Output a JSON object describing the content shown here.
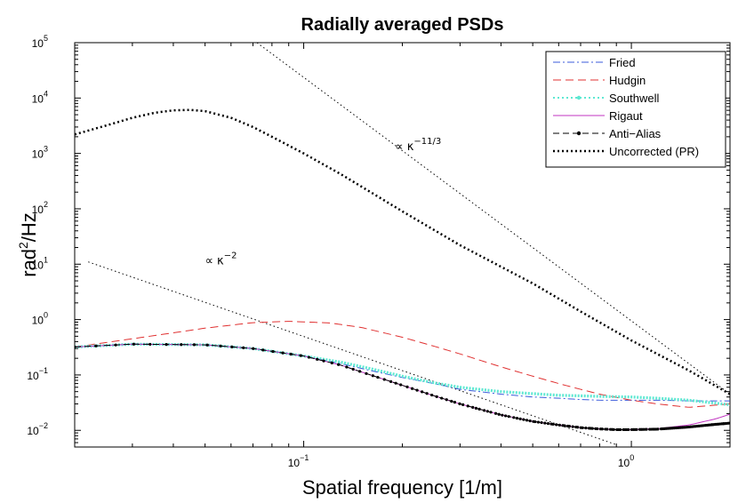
{
  "chart_data": {
    "type": "line",
    "title": "Radially averaged PSDs",
    "xlabel": "Spatial frequency [1/m]",
    "ylabel_base": "rad",
    "ylabel_sup": "2",
    "ylabel_tail": "/Hz",
    "x_scale": "log",
    "y_scale": "log",
    "xlim": [
      0.02,
      2.0
    ],
    "ylim": [
      0.005,
      100000
    ],
    "grid": false,
    "legend_position": "top-right",
    "x_ticks": [
      {
        "value": 0.1,
        "base": "10",
        "exp": "−1"
      },
      {
        "value": 1.0,
        "base": "10",
        "exp": "0"
      }
    ],
    "y_ticks": [
      {
        "value": 0.01,
        "base": "10",
        "exp": "−2"
      },
      {
        "value": 0.1,
        "base": "10",
        "exp": "−1"
      },
      {
        "value": 1,
        "base": "10",
        "exp": "0"
      },
      {
        "value": 10,
        "base": "10",
        "exp": "1"
      },
      {
        "value": 100,
        "base": "10",
        "exp": "2"
      },
      {
        "value": 1000,
        "base": "10",
        "exp": "3"
      },
      {
        "value": 10000,
        "base": "10",
        "exp": "4"
      },
      {
        "value": 100000,
        "base": "10",
        "exp": "5"
      }
    ],
    "annotations": [
      {
        "id": "k113",
        "prefix": "∝ κ",
        "sup": "−11/3",
        "x": 0.19,
        "y": 1150
      },
      {
        "id": "k2",
        "prefix": "∝ κ",
        "sup": "−2",
        "x": 0.05,
        "y": 10
      }
    ],
    "series": [
      {
        "name": "Fried",
        "color": "#3b5bdb",
        "style": "dashdot",
        "x": [
          0.02,
          0.03,
          0.05,
          0.07,
          0.1,
          0.13,
          0.16,
          0.2,
          0.25,
          0.3,
          0.4,
          0.5,
          0.6,
          0.7,
          0.8,
          1.0,
          1.2,
          1.5,
          1.8,
          2.0
        ],
        "y": [
          0.32,
          0.36,
          0.35,
          0.3,
          0.22,
          0.16,
          0.12,
          0.09,
          0.07,
          0.055,
          0.045,
          0.04,
          0.038,
          0.036,
          0.035,
          0.035,
          0.035,
          0.034,
          0.034,
          0.034
        ]
      },
      {
        "name": "Hudgin",
        "color": "#e03131",
        "style": "dashed",
        "x": [
          0.02,
          0.03,
          0.05,
          0.07,
          0.09,
          0.12,
          0.15,
          0.2,
          0.25,
          0.3,
          0.4,
          0.5,
          0.6,
          0.7,
          0.8,
          1.0,
          1.2,
          1.5,
          2.0
        ],
        "y": [
          0.32,
          0.45,
          0.7,
          0.88,
          0.93,
          0.87,
          0.72,
          0.48,
          0.33,
          0.24,
          0.14,
          0.095,
          0.07,
          0.055,
          0.045,
          0.035,
          0.03,
          0.026,
          0.03
        ]
      },
      {
        "name": "Southwell",
        "color": "#5ee8d2",
        "style": "dotted",
        "x": [
          0.02,
          0.03,
          0.05,
          0.07,
          0.1,
          0.13,
          0.16,
          0.2,
          0.25,
          0.3,
          0.4,
          0.5,
          0.6,
          0.7,
          0.8,
          1.0,
          1.2,
          1.5,
          1.8,
          2.0
        ],
        "y": [
          0.32,
          0.36,
          0.35,
          0.3,
          0.22,
          0.17,
          0.13,
          0.095,
          0.072,
          0.06,
          0.05,
          0.046,
          0.043,
          0.042,
          0.041,
          0.04,
          0.038,
          0.035,
          0.031,
          0.029
        ]
      },
      {
        "name": "Rigaut",
        "color": "#c033c0",
        "style": "solid",
        "x": [
          0.02,
          0.03,
          0.05,
          0.07,
          0.1,
          0.13,
          0.16,
          0.2,
          0.25,
          0.3,
          0.4,
          0.5,
          0.6,
          0.7,
          0.8,
          0.9,
          1.0,
          1.2,
          1.5,
          1.8,
          2.0
        ],
        "y": [
          0.32,
          0.36,
          0.35,
          0.3,
          0.22,
          0.15,
          0.1,
          0.065,
          0.042,
          0.03,
          0.019,
          0.0145,
          0.0125,
          0.0112,
          0.0106,
          0.0103,
          0.0103,
          0.0107,
          0.0125,
          0.016,
          0.0195
        ]
      },
      {
        "name": "Anti−Alias",
        "color": "#000000",
        "style": "dashed-dots",
        "x": [
          0.02,
          0.03,
          0.05,
          0.07,
          0.1,
          0.13,
          0.16,
          0.2,
          0.25,
          0.3,
          0.4,
          0.5,
          0.6,
          0.7,
          0.8,
          0.9,
          1.0,
          1.2,
          1.5,
          1.8,
          2.0
        ],
        "y": [
          0.32,
          0.36,
          0.35,
          0.3,
          0.22,
          0.15,
          0.1,
          0.065,
          0.042,
          0.03,
          0.019,
          0.0145,
          0.0125,
          0.0112,
          0.0106,
          0.0103,
          0.0103,
          0.0105,
          0.0115,
          0.0128,
          0.0135
        ]
      },
      {
        "name": "Uncorrected (PR)",
        "color": "#000000",
        "style": "thick-dotted",
        "x": [
          0.02,
          0.025,
          0.03,
          0.035,
          0.04,
          0.045,
          0.05,
          0.06,
          0.07,
          0.08,
          0.1,
          0.13,
          0.16,
          0.2,
          0.3,
          0.4,
          0.5,
          0.7,
          1.0,
          1.5,
          2.0
        ],
        "y": [
          2200,
          3200,
          4400,
          5400,
          6000,
          6100,
          5800,
          4400,
          3000,
          2000,
          1000,
          420,
          200,
          90,
          22,
          9,
          4.5,
          1.4,
          0.42,
          0.12,
          0.045
        ]
      }
    ],
    "reference_lines": [
      {
        "id": "ref-k113",
        "x": [
          0.072,
          2.0
        ],
        "y": [
          100000,
          0.045
        ]
      },
      {
        "id": "ref-k2",
        "x": [
          0.022,
          0.9
        ],
        "y": [
          11,
          0.0055
        ]
      }
    ]
  }
}
